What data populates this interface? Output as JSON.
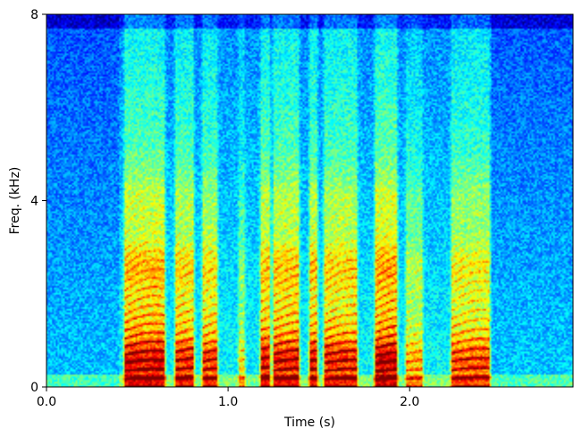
{
  "chart_data": {
    "type": "heatmap",
    "title": "",
    "xlabel": "Time (s)",
    "ylabel": "Freq. (kHz)",
    "xlim": [
      0.0,
      2.9
    ],
    "ylim": [
      0,
      8
    ],
    "xticks": [
      0.0,
      1.0,
      2.0
    ],
    "xtick_labels": [
      "0.0",
      "1.0",
      "2.0"
    ],
    "yticks": [
      0,
      4,
      8
    ],
    "ytick_labels": [
      "0",
      "4",
      "8"
    ],
    "colormap": "jet",
    "grid": false,
    "legend": "none",
    "colors": [
      "#00007f",
      "#0000ff",
      "#007fff",
      "#00ffff",
      "#7fff7f",
      "#ffff00",
      "#ff7f00",
      "#ff0000",
      "#7f0000"
    ],
    "speech_segments_s": [
      {
        "start": 0.42,
        "end": 0.66,
        "f0_hz": 170,
        "energy": 0.95
      },
      {
        "start": 0.7,
        "end": 0.82,
        "f0_hz": 185,
        "energy": 0.85
      },
      {
        "start": 0.85,
        "end": 0.95,
        "f0_hz": 180,
        "energy": 0.8
      },
      {
        "start": 1.05,
        "end": 1.1,
        "f0_hz": 190,
        "energy": 0.45
      },
      {
        "start": 1.17,
        "end": 1.24,
        "f0_hz": 200,
        "energy": 0.9
      },
      {
        "start": 1.24,
        "end": 1.4,
        "f0_hz": 175,
        "energy": 0.9
      },
      {
        "start": 1.44,
        "end": 1.5,
        "f0_hz": 185,
        "energy": 0.9
      },
      {
        "start": 1.52,
        "end": 1.72,
        "f0_hz": 170,
        "energy": 0.85
      },
      {
        "start": 1.8,
        "end": 1.94,
        "f0_hz": 165,
        "energy": 1.0
      },
      {
        "start": 1.97,
        "end": 2.08,
        "f0_hz": 175,
        "energy": 0.55
      },
      {
        "start": 2.22,
        "end": 2.45,
        "f0_hz": 180,
        "energy": 0.75
      }
    ]
  }
}
